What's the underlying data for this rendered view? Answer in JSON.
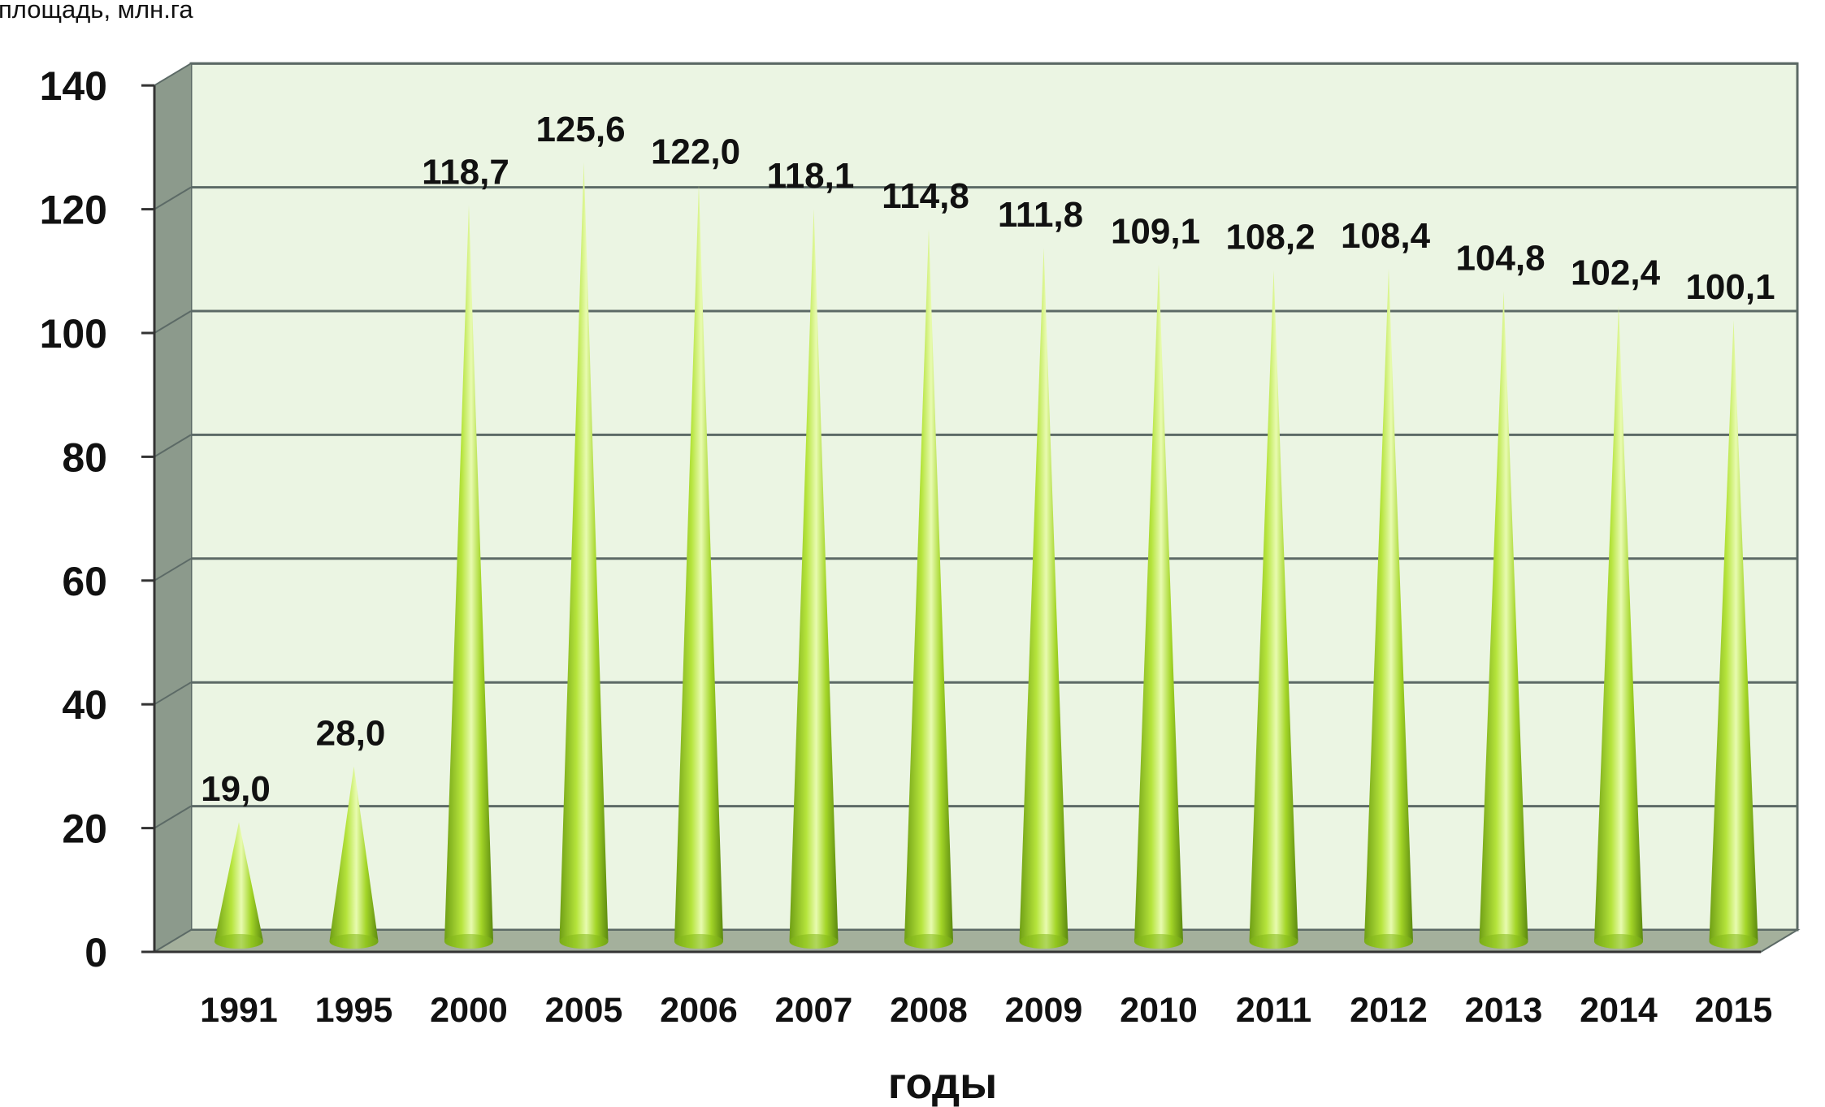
{
  "chart_data": {
    "type": "bar",
    "categories": [
      "1991",
      "1995",
      "2000",
      "2005",
      "2006",
      "2007",
      "2008",
      "2009",
      "2010",
      "2011",
      "2012",
      "2013",
      "2014",
      "2015"
    ],
    "values": [
      19.0,
      28.0,
      118.7,
      125.6,
      122.0,
      118.1,
      114.8,
      111.8,
      109.1,
      108.2,
      108.4,
      104.8,
      102.4,
      100.1
    ],
    "value_labels": [
      "19,0",
      "28,0",
      "118,7",
      "125,6",
      "122,0",
      "118,1",
      "114,8",
      "111,8",
      "109,1",
      "108,2",
      "108,4",
      "104,8",
      "102,4",
      "100,1"
    ],
    "title": "",
    "xlabel": "годы",
    "ylabel": "площадь, млн.га",
    "ylim": [
      0,
      140
    ],
    "yticks": [
      "0",
      "20",
      "40",
      "60",
      "80",
      "100",
      "120",
      "140"
    ],
    "grid": true,
    "bar_shape": "cone",
    "colors": {
      "bar_light": "#e4f8a4",
      "bar_mid": "#9cd21f",
      "bar_dark": "#5f8c10",
      "plot_bg": "#ebf5e3",
      "wall_side": "#8c9a8c",
      "floor": "#a4b09c",
      "grid": "#5c6a66"
    }
  }
}
